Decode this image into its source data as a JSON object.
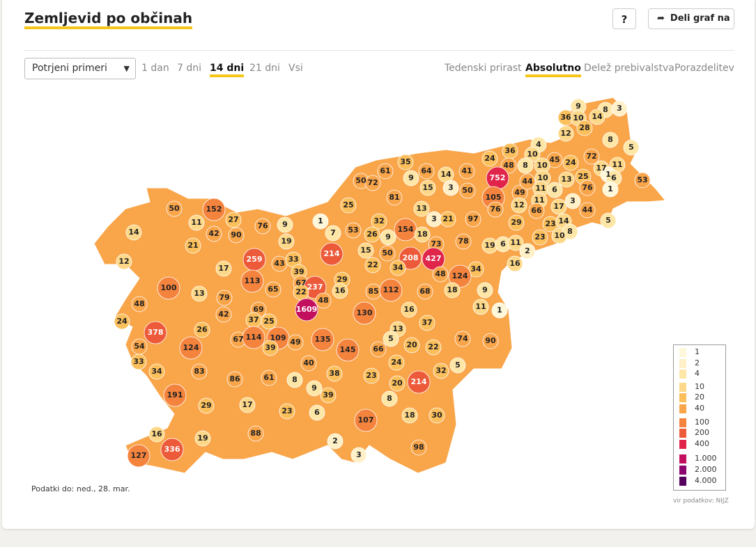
{
  "title": "Zemljevid po občinah",
  "help_label": "?",
  "share": {
    "icon": "share-icon",
    "label": "Deli graf na"
  },
  "select": {
    "value": "Potrjeni primeri"
  },
  "time_tabs": [
    "1 dan",
    "7 dni",
    "14 dni",
    "21 dni",
    "Vsi"
  ],
  "time_active": "14 dni",
  "mode_tabs": [
    "Tedenski prirast",
    "Absolutno",
    "Delež prebivalstva",
    "Porazdelitev"
  ],
  "mode_active": "Absolutno",
  "footnote": "Podatki do: ned., 28. mar.",
  "source": "vir podatkov: NIJZ",
  "legend": [
    {
      "label": "1",
      "color": "#fff7d9"
    },
    {
      "label": "2",
      "color": "#fff0c8"
    },
    {
      "label": "4",
      "color": "#fee6a6"
    },
    {
      "label": "10",
      "color": "#fdd888"
    },
    {
      "label": "20",
      "color": "#fbbf5c"
    },
    {
      "label": "40",
      "color": "#f9a54a"
    },
    {
      "label": "100",
      "color": "#f4833e"
    },
    {
      "label": "200",
      "color": "#ec5a3a"
    },
    {
      "label": "400",
      "color": "#e0244a"
    },
    {
      "label": "1.000",
      "color": "#c2105e"
    },
    {
      "label": "2.000",
      "color": "#8c066e"
    },
    {
      "label": "4.000",
      "color": "#55005e"
    }
  ],
  "municipalities": [
    {
      "v": "9"
    },
    {
      "v": "8"
    },
    {
      "v": "3"
    },
    {
      "v": "36"
    },
    {
      "v": "10"
    },
    {
      "v": "14"
    },
    {
      "v": "28"
    },
    {
      "v": "12"
    },
    {
      "v": "8"
    },
    {
      "v": "5"
    },
    {
      "v": "4"
    },
    {
      "v": "36"
    },
    {
      "v": "24"
    },
    {
      "v": "48"
    },
    {
      "v": "10"
    },
    {
      "v": "45"
    },
    {
      "v": "72"
    },
    {
      "v": "24"
    },
    {
      "v": "8"
    },
    {
      "v": "10"
    },
    {
      "v": "17"
    },
    {
      "v": "11"
    },
    {
      "v": "1"
    },
    {
      "v": "35"
    },
    {
      "v": "61"
    },
    {
      "v": "64"
    },
    {
      "v": "14"
    },
    {
      "v": "41"
    },
    {
      "v": "752"
    },
    {
      "v": "49"
    },
    {
      "v": "44"
    },
    {
      "v": "10"
    },
    {
      "v": "13"
    },
    {
      "v": "25"
    },
    {
      "v": "6"
    },
    {
      "v": "53"
    },
    {
      "v": "50"
    },
    {
      "v": "72"
    },
    {
      "v": "9"
    },
    {
      "v": "15"
    },
    {
      "v": "3"
    },
    {
      "v": "50"
    },
    {
      "v": "105"
    },
    {
      "v": "11"
    },
    {
      "v": "6"
    },
    {
      "v": "76"
    },
    {
      "v": "1"
    },
    {
      "v": "81"
    },
    {
      "v": "3"
    },
    {
      "v": "12"
    },
    {
      "v": "11"
    },
    {
      "v": "17"
    },
    {
      "v": "44"
    },
    {
      "v": "25"
    },
    {
      "v": "13"
    },
    {
      "v": "76"
    },
    {
      "v": "66"
    },
    {
      "v": "50"
    },
    {
      "v": "152"
    },
    {
      "v": "1"
    },
    {
      "v": "3"
    },
    {
      "v": "21"
    },
    {
      "v": "97"
    },
    {
      "v": "29"
    },
    {
      "v": "23"
    },
    {
      "v": "14"
    },
    {
      "v": "5"
    },
    {
      "v": "27"
    },
    {
      "v": "11"
    },
    {
      "v": "9"
    },
    {
      "v": "53"
    },
    {
      "v": "32"
    },
    {
      "v": "154"
    },
    {
      "v": "10"
    },
    {
      "v": "8"
    },
    {
      "v": "14"
    },
    {
      "v": "42"
    },
    {
      "v": "90"
    },
    {
      "v": "76"
    },
    {
      "v": "7"
    },
    {
      "v": "26"
    },
    {
      "v": "9"
    },
    {
      "v": "18"
    },
    {
      "v": "23"
    },
    {
      "v": "19"
    },
    {
      "v": "73"
    },
    {
      "v": "78"
    },
    {
      "v": "19"
    },
    {
      "v": "6"
    },
    {
      "v": "11"
    },
    {
      "v": "21"
    },
    {
      "v": "15"
    },
    {
      "v": "50"
    },
    {
      "v": "2"
    },
    {
      "v": "12"
    },
    {
      "v": "214"
    },
    {
      "v": "208"
    },
    {
      "v": "427"
    },
    {
      "v": "34"
    },
    {
      "v": "16"
    },
    {
      "v": "259"
    },
    {
      "v": "43"
    },
    {
      "v": "22"
    },
    {
      "v": "34"
    },
    {
      "v": "17"
    },
    {
      "v": "33"
    },
    {
      "v": "39"
    },
    {
      "v": "29"
    },
    {
      "v": "48"
    },
    {
      "v": "124"
    },
    {
      "v": "113"
    },
    {
      "v": "67"
    },
    {
      "v": "100"
    },
    {
      "v": "65"
    },
    {
      "v": "237"
    },
    {
      "v": "16"
    },
    {
      "v": "85"
    },
    {
      "v": "112"
    },
    {
      "v": "68"
    },
    {
      "v": "18"
    },
    {
      "v": "9"
    },
    {
      "v": "13"
    },
    {
      "v": "22"
    },
    {
      "v": "79"
    },
    {
      "v": "48"
    },
    {
      "v": "11"
    },
    {
      "v": "1609"
    },
    {
      "v": "130"
    },
    {
      "v": "16"
    },
    {
      "v": "1"
    },
    {
      "v": "48"
    },
    {
      "v": "69"
    },
    {
      "v": "24"
    },
    {
      "v": "42"
    },
    {
      "v": "37"
    },
    {
      "v": "25"
    },
    {
      "v": "37"
    },
    {
      "v": "26"
    },
    {
      "v": "13"
    },
    {
      "v": "378"
    },
    {
      "v": "67"
    },
    {
      "v": "114"
    },
    {
      "v": "109"
    },
    {
      "v": "49"
    },
    {
      "v": "135"
    },
    {
      "v": "5"
    },
    {
      "v": "74"
    },
    {
      "v": "90"
    },
    {
      "v": "20"
    },
    {
      "v": "54"
    },
    {
      "v": "39"
    },
    {
      "v": "145"
    },
    {
      "v": "66"
    },
    {
      "v": "22"
    },
    {
      "v": "124"
    },
    {
      "v": "33"
    },
    {
      "v": "40"
    },
    {
      "v": "24"
    },
    {
      "v": "5"
    },
    {
      "v": "34"
    },
    {
      "v": "83"
    },
    {
      "v": "32"
    },
    {
      "v": "61"
    },
    {
      "v": "86"
    },
    {
      "v": "38"
    },
    {
      "v": "23"
    },
    {
      "v": "8"
    },
    {
      "v": "214"
    },
    {
      "v": "9"
    },
    {
      "v": "20"
    },
    {
      "v": "191"
    },
    {
      "v": "39"
    },
    {
      "v": "29"
    },
    {
      "v": "17"
    },
    {
      "v": "8"
    },
    {
      "v": "6"
    },
    {
      "v": "23"
    },
    {
      "v": "107"
    },
    {
      "v": "18"
    },
    {
      "v": "30"
    },
    {
      "v": "88"
    },
    {
      "v": "16"
    },
    {
      "v": "19"
    },
    {
      "v": "2"
    },
    {
      "v": "98"
    },
    {
      "v": "336"
    },
    {
      "v": "127"
    },
    {
      "v": "3"
    }
  ]
}
